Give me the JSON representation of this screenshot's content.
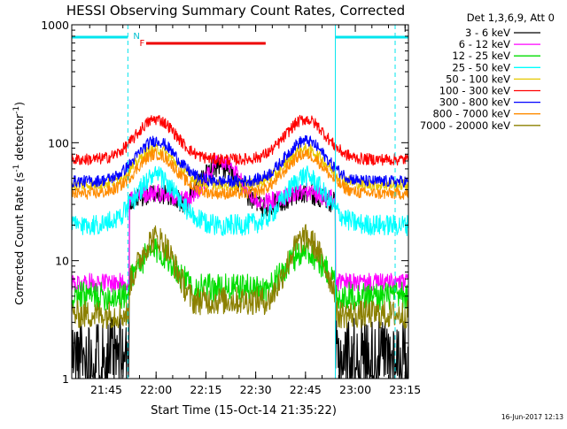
{
  "chart_data": {
    "type": "line",
    "title": "HESSI Observing Summary Count Rates, Corrected",
    "xlabel": "Start Time (15-Oct-14 21:35:22)",
    "ylabel_main": "Corrected Count Rate (s",
    "ylabel_sup1": "-1",
    "ylabel_mid": " detector",
    "ylabel_sup2": "-1",
    "ylabel_end": ")",
    "yscale": "log",
    "ylim": [
      1,
      1000
    ],
    "xlim_min": [
      -0.4,
      101
    ],
    "yticks": [
      {
        "value": 1,
        "label": "1"
      },
      {
        "value": 10,
        "label": "10"
      },
      {
        "value": 100,
        "label": "100"
      },
      {
        "value": 1000,
        "label": "1000"
      }
    ],
    "xticks": [
      {
        "value": 10,
        "label": "21:45"
      },
      {
        "value": 25,
        "label": "22:00"
      },
      {
        "value": 40,
        "label": "22:15"
      },
      {
        "value": 55,
        "label": "22:30"
      },
      {
        "value": 70,
        "label": "22:45"
      },
      {
        "value": 85,
        "label": "23:00"
      },
      {
        "value": 100,
        "label": "23:15"
      }
    ],
    "legend_title": "Det 1,3,6,9, Att 0",
    "legend_position": "right",
    "footer_date": "16-Jun-2017 12:13",
    "markers": {
      "night_label": "N",
      "flare_label": "F"
    },
    "series": [
      {
        "name": "3 - 6 keV",
        "color": "#000000",
        "low": 1.5,
        "high": 36,
        "mode": "thermal_lo"
      },
      {
        "name": "6 - 12 keV",
        "color": "#ff00ff",
        "low": 6.5,
        "high": 40,
        "mode": "pink"
      },
      {
        "name": "12 - 25 keV",
        "color": "#00dd00",
        "low": 5,
        "high": 12,
        "mode": "orbit_low"
      },
      {
        "name": "25 - 50 keV",
        "color": "#00ffff",
        "low": 20,
        "high": 52,
        "mode": "orbit_mid"
      },
      {
        "name": "50 - 100 keV",
        "color": "#e6c800",
        "low": 44,
        "high": 88,
        "mode": "orbit"
      },
      {
        "name": "100 - 300 keV",
        "color": "#ff0000",
        "low": 72,
        "high": 158,
        "mode": "orbit"
      },
      {
        "name": "300 - 800 keV",
        "color": "#0000ff",
        "low": 47,
        "high": 104,
        "mode": "orbit"
      },
      {
        "name": "800 - 7000 keV",
        "color": "#ff8c00",
        "low": 37,
        "high": 80,
        "mode": "orbit"
      },
      {
        "name": "7000 - 20000 keV",
        "color": "#8b8000",
        "low": 3.5,
        "high": 15.5,
        "mode": "orbit_low"
      }
    ]
  }
}
